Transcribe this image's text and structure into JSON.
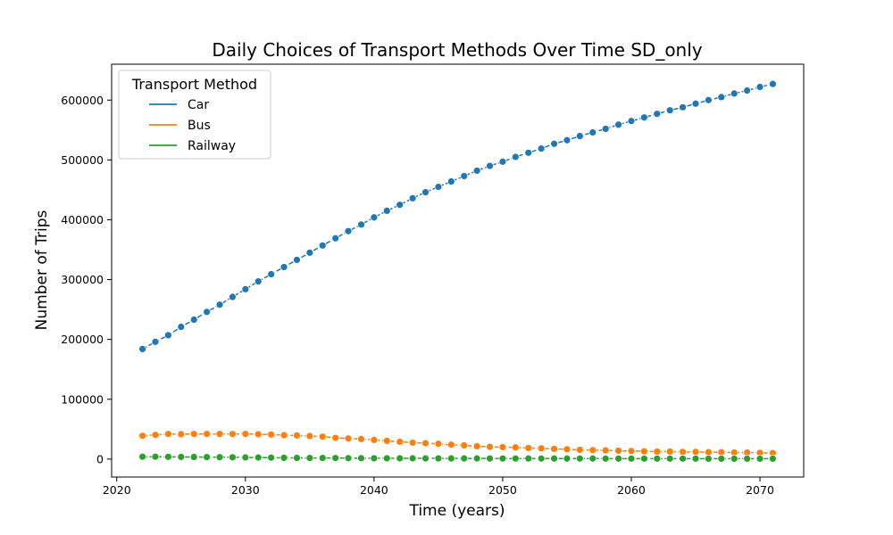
{
  "chart_data": {
    "type": "line",
    "title": "Daily Choices of Transport Methods Over Time SD_only",
    "xlabel": "Time (years)",
    "ylabel": "Number of Trips",
    "x": [
      2022,
      2023,
      2024,
      2025,
      2026,
      2027,
      2028,
      2029,
      2030,
      2031,
      2032,
      2033,
      2034,
      2035,
      2036,
      2037,
      2038,
      2039,
      2040,
      2041,
      2042,
      2043,
      2044,
      2045,
      2046,
      2047,
      2048,
      2049,
      2050,
      2051,
      2052,
      2053,
      2054,
      2055,
      2056,
      2057,
      2058,
      2059,
      2060,
      2061,
      2062,
      2063,
      2064,
      2065,
      2066,
      2067,
      2068,
      2069,
      2070,
      2071
    ],
    "xlim": [
      2019.6,
      2073.4
    ],
    "ylim": [
      -30000,
      660000
    ],
    "x_ticks": [
      2020,
      2030,
      2040,
      2050,
      2060,
      2070
    ],
    "x_tick_labels": [
      "2020",
      "2030",
      "2040",
      "2050",
      "2060",
      "2070"
    ],
    "y_ticks": [
      0,
      100000,
      200000,
      300000,
      400000,
      500000,
      600000
    ],
    "y_tick_labels": [
      "0",
      "100000",
      "200000",
      "300000",
      "400000",
      "500000",
      "600000"
    ],
    "grid": false,
    "legend": {
      "title": "Transport Method",
      "position": "upper-left"
    },
    "series": [
      {
        "name": "Car",
        "color": "#1f77b4",
        "values": [
          184000,
          196000,
          207000,
          221000,
          233000,
          246000,
          258000,
          271000,
          284000,
          297000,
          309000,
          321000,
          333000,
          345000,
          357000,
          369000,
          381000,
          392000,
          404000,
          415000,
          425000,
          436000,
          446000,
          455000,
          464000,
          473000,
          482000,
          490000,
          497000,
          505000,
          512000,
          519000,
          527000,
          533000,
          540000,
          546000,
          552000,
          559000,
          565000,
          571000,
          577000,
          583000,
          588000,
          594000,
          600000,
          605000,
          611000,
          616000,
          622000,
          627000
        ]
      },
      {
        "name": "Bus",
        "color": "#ff7f0e",
        "values": [
          39000,
          40500,
          42000,
          41500,
          42000,
          42000,
          42000,
          42000,
          42000,
          41500,
          41000,
          40000,
          39500,
          38500,
          37500,
          35500,
          34500,
          33500,
          32000,
          30500,
          29000,
          27500,
          26500,
          25500,
          24000,
          23000,
          21500,
          20500,
          20000,
          19500,
          18500,
          18000,
          17000,
          16500,
          15500,
          15000,
          14500,
          14000,
          13500,
          13000,
          12500,
          12500,
          12000,
          12000,
          11500,
          11500,
          11000,
          11000,
          10500,
          10000
        ]
      },
      {
        "name": "Railway",
        "color": "#2ca02c",
        "values": [
          4000,
          4000,
          3800,
          3600,
          3500,
          3400,
          3200,
          3000,
          2800,
          2600,
          2400,
          2200,
          2000,
          1900,
          1800,
          1700,
          1600,
          1500,
          1400,
          1400,
          1300,
          1300,
          1200,
          1200,
          1100,
          1100,
          1100,
          1000,
          1000,
          1000,
          1000,
          900,
          900,
          900,
          900,
          900,
          800,
          800,
          800,
          800,
          800,
          800,
          800,
          800,
          700,
          700,
          700,
          700,
          700,
          700
        ]
      }
    ]
  }
}
